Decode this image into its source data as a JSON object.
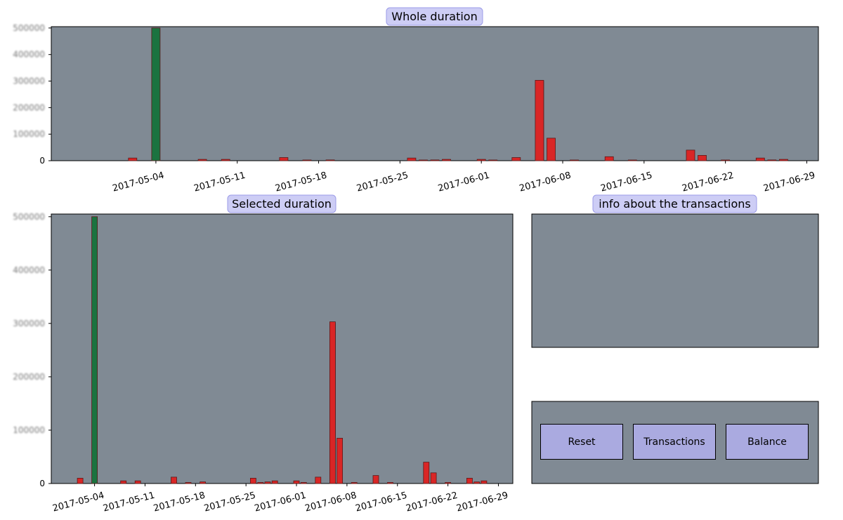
{
  "titles": {
    "whole": "Whole duration",
    "selected": "Selected duration",
    "info": "info about the transactions"
  },
  "buttons": {
    "reset": "Reset",
    "transactions": "Transactions",
    "balance": "Balance"
  },
  "colors": {
    "axes_bg": "#808a94",
    "deposit": "#1b7340",
    "withdrawal": "#d92626",
    "title_box": "#cdcdf5",
    "button": "#aaaae0"
  },
  "chart_data": [
    {
      "id": "whole",
      "type": "bar",
      "title": "Whole duration",
      "xlabel": "",
      "ylabel": "",
      "x_type": "date",
      "xlim": [
        "2017-04-25",
        "2017-06-30"
      ],
      "ylim": [
        0,
        505000
      ],
      "xticks": [
        "2017-05-04",
        "2017-05-11",
        "2017-05-18",
        "2017-05-25",
        "2017-06-01",
        "2017-06-08",
        "2017-06-15",
        "2017-06-22",
        "2017-06-29"
      ],
      "yticks": [
        0,
        100000,
        200000,
        300000,
        400000,
        500000
      ],
      "yticklabels": [
        "0",
        "100000",
        "200000",
        "300000",
        "400000",
        "500000"
      ],
      "grid": false,
      "legend": "none",
      "series": [
        {
          "color": "#1b7340",
          "points": [
            {
              "x": "2017-05-04",
              "y": 500000
            },
            {
              "x": "2017-06-06",
              "y": 300000
            }
          ]
        },
        {
          "color": "#d92626",
          "points": [
            {
              "x": "2017-05-02",
              "y": 10000
            },
            {
              "x": "2017-05-08",
              "y": 5000
            },
            {
              "x": "2017-05-10",
              "y": 5000
            },
            {
              "x": "2017-05-15",
              "y": 12000
            },
            {
              "x": "2017-05-17",
              "y": 2000
            },
            {
              "x": "2017-05-19",
              "y": 3000
            },
            {
              "x": "2017-05-26",
              "y": 10000
            },
            {
              "x": "2017-05-27",
              "y": 2000
            },
            {
              "x": "2017-05-28",
              "y": 3000
            },
            {
              "x": "2017-05-29",
              "y": 5000
            },
            {
              "x": "2017-06-01",
              "y": 5000
            },
            {
              "x": "2017-06-02",
              "y": 2000
            },
            {
              "x": "2017-06-04",
              "y": 12000
            },
            {
              "x": "2017-06-06",
              "y": 303000
            },
            {
              "x": "2017-06-07",
              "y": 85000
            },
            {
              "x": "2017-06-09",
              "y": 2000
            },
            {
              "x": "2017-06-12",
              "y": 15000
            },
            {
              "x": "2017-06-14",
              "y": 2000
            },
            {
              "x": "2017-06-19",
              "y": 40000
            },
            {
              "x": "2017-06-20",
              "y": 20000
            },
            {
              "x": "2017-06-22",
              "y": 2000
            },
            {
              "x": "2017-06-25",
              "y": 10000
            },
            {
              "x": "2017-06-26",
              "y": 3000
            },
            {
              "x": "2017-06-27",
              "y": 5000
            }
          ]
        }
      ]
    },
    {
      "id": "selected",
      "type": "bar",
      "title": "Selected duration",
      "xlabel": "",
      "ylabel": "",
      "x_type": "date",
      "xlim": [
        "2017-04-28",
        "2017-07-01"
      ],
      "ylim": [
        0,
        505000
      ],
      "xticks": [
        "2017-05-04",
        "2017-05-11",
        "2017-05-18",
        "2017-05-25",
        "2017-06-01",
        "2017-06-08",
        "2017-06-15",
        "2017-06-22",
        "2017-06-29"
      ],
      "yticks": [
        0,
        100000,
        200000,
        300000,
        400000,
        500000
      ],
      "yticklabels": [
        "0",
        "100000",
        "200000",
        "300000",
        "400000",
        "500000"
      ],
      "grid": false,
      "legend": "none",
      "series": [
        {
          "color": "#1b7340",
          "points": [
            {
              "x": "2017-05-04",
              "y": 500000
            },
            {
              "x": "2017-06-06",
              "y": 300000
            }
          ]
        },
        {
          "color": "#d92626",
          "points": [
            {
              "x": "2017-05-02",
              "y": 10000
            },
            {
              "x": "2017-05-08",
              "y": 5000
            },
            {
              "x": "2017-05-10",
              "y": 5000
            },
            {
              "x": "2017-05-15",
              "y": 12000
            },
            {
              "x": "2017-05-17",
              "y": 2000
            },
            {
              "x": "2017-05-19",
              "y": 3000
            },
            {
              "x": "2017-05-26",
              "y": 10000
            },
            {
              "x": "2017-05-27",
              "y": 2000
            },
            {
              "x": "2017-05-28",
              "y": 3000
            },
            {
              "x": "2017-05-29",
              "y": 5000
            },
            {
              "x": "2017-06-01",
              "y": 5000
            },
            {
              "x": "2017-06-02",
              "y": 2000
            },
            {
              "x": "2017-06-04",
              "y": 12000
            },
            {
              "x": "2017-06-06",
              "y": 303000
            },
            {
              "x": "2017-06-07",
              "y": 85000
            },
            {
              "x": "2017-06-09",
              "y": 2000
            },
            {
              "x": "2017-06-12",
              "y": 15000
            },
            {
              "x": "2017-06-14",
              "y": 2000
            },
            {
              "x": "2017-06-19",
              "y": 40000
            },
            {
              "x": "2017-06-20",
              "y": 20000
            },
            {
              "x": "2017-06-22",
              "y": 2000
            },
            {
              "x": "2017-06-25",
              "y": 10000
            },
            {
              "x": "2017-06-26",
              "y": 3000
            },
            {
              "x": "2017-06-27",
              "y": 5000
            }
          ]
        }
      ]
    }
  ]
}
